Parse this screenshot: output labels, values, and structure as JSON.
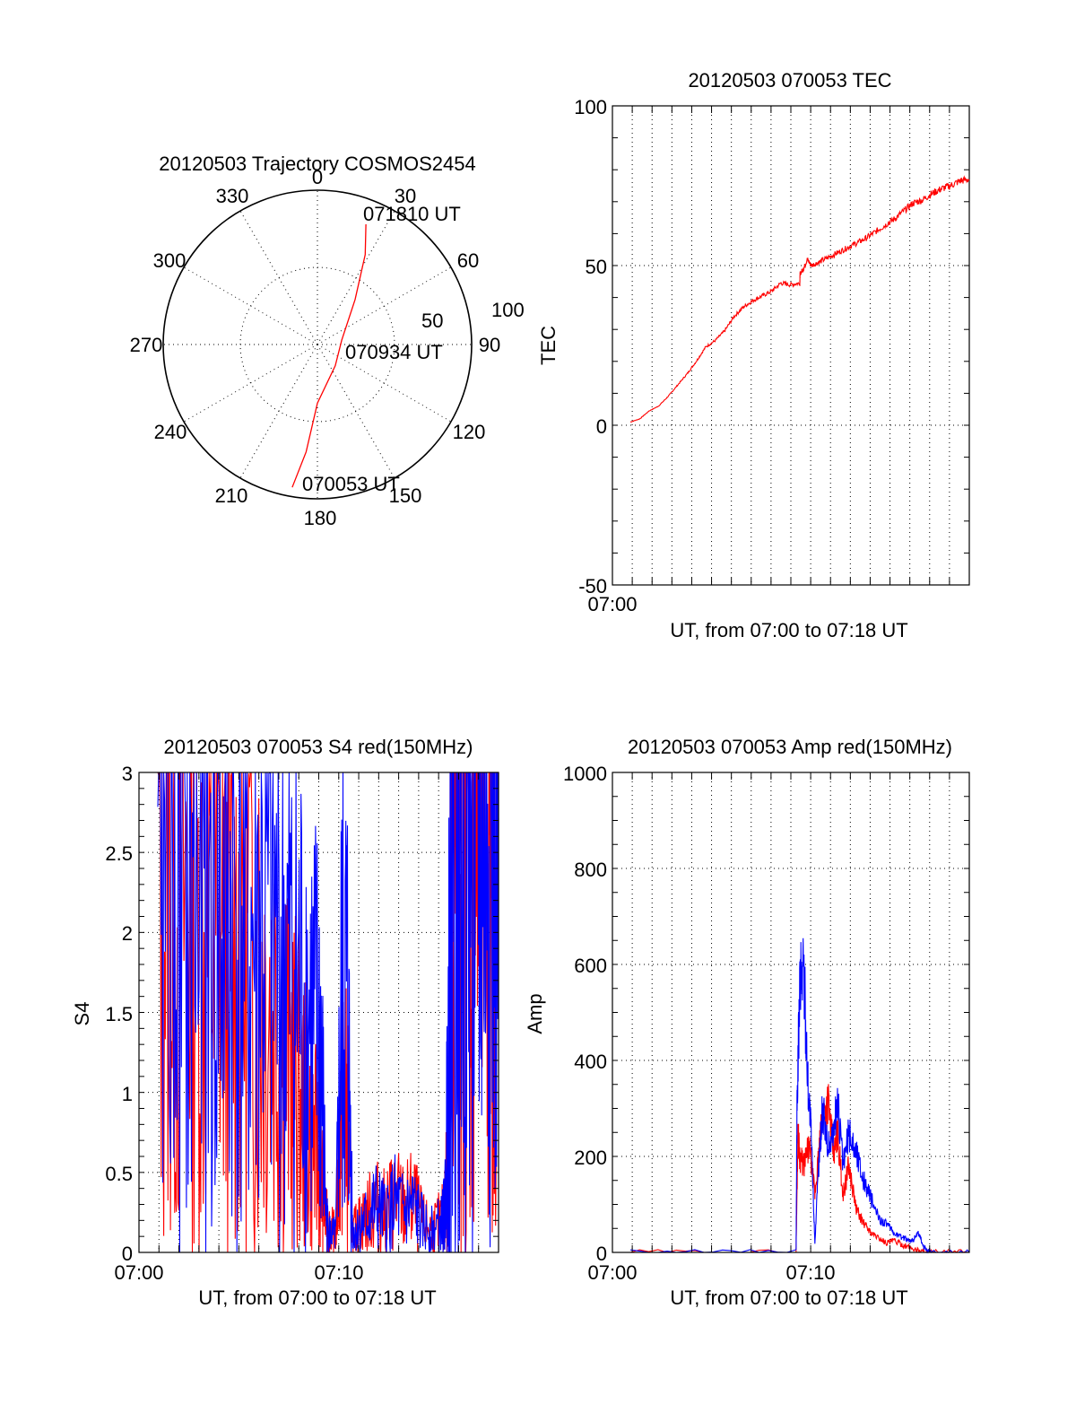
{
  "chart_data": [
    {
      "type": "polar",
      "title": "20120503 Trajectory COSMOS2454",
      "angle_labels": [
        "0",
        "30",
        "60",
        "90",
        "120",
        "150",
        "180",
        "210",
        "240",
        "270",
        "300",
        "330"
      ],
      "radial_labels": [
        "50",
        "100"
      ],
      "grid": true,
      "series": [
        {
          "color": "#ff0000",
          "points": [
            {
              "azimuth": 190,
              "elevation_offset": 94
            },
            {
              "azimuth": 186,
              "elevation_offset": 70
            },
            {
              "azimuth": 180,
              "elevation_offset": 38
            },
            {
              "azimuth": 140,
              "elevation_offset": 18
            },
            {
              "azimuth": 80,
              "elevation_offset": 16
            },
            {
              "azimuth": 40,
              "elevation_offset": 38
            },
            {
              "azimuth": 28,
              "elevation_offset": 66
            },
            {
              "azimuth": 22,
              "elevation_offset": 84
            }
          ]
        }
      ],
      "annotations": [
        "071810 UT",
        "070934 UT",
        "070053 UT"
      ]
    },
    {
      "type": "line",
      "title": "20120503 070053 TEC",
      "xlabel": "UT, from 07:00 to 07:18 UT",
      "ylabel": "TEC",
      "xlim": [
        0,
        18
      ],
      "ylim": [
        -50,
        100
      ],
      "yticks": [
        "100",
        "50",
        "0",
        "-50"
      ],
      "xticks": [
        "07:00"
      ],
      "grid": true,
      "series": [
        {
          "color": "#ff0000",
          "x": [
            0.0,
            0.5,
            1.0,
            1.5,
            2.0,
            2.5,
            3.0,
            3.5,
            4.0,
            4.5,
            5.0,
            5.5,
            6.0,
            6.5,
            7.0,
            7.5,
            8.0,
            8.5,
            9.0,
            9.01,
            9.2,
            9.4,
            9.6,
            10.0,
            10.5,
            11.0,
            11.5,
            12.0,
            12.5,
            13.0,
            13.5,
            14.0,
            14.5,
            15.0,
            15.5,
            16.0,
            16.5,
            17.0,
            17.5,
            18.0
          ],
          "y": [
            1.0,
            2.0,
            4.5,
            6.0,
            9.0,
            12.5,
            16.0,
            20.0,
            24.5,
            26.5,
            29.5,
            34.0,
            37.0,
            39.0,
            40.5,
            42.0,
            44.5,
            44.0,
            44.5,
            47.5,
            49.0,
            52.0,
            50.0,
            51.0,
            52.5,
            54.0,
            55.5,
            57.0,
            58.5,
            60.5,
            62.5,
            64.5,
            67.0,
            69.5,
            70.5,
            72.5,
            74.0,
            75.0,
            76.5,
            77.0
          ]
        }
      ]
    },
    {
      "type": "line",
      "title": "20120503 070053 S4 red(150MHz)",
      "xlabel": "UT, from 07:00 to 07:18 UT",
      "ylabel": "S4",
      "xlim": [
        0,
        18
      ],
      "ylim": [
        0,
        3
      ],
      "yticks": [
        "3",
        "2.5",
        "2",
        "1.5",
        "1",
        "0.5",
        "0"
      ],
      "xticks": [
        "07:00",
        "07:10"
      ],
      "grid": true,
      "series": [
        {
          "color": "#ff0000",
          "x": [
            0.0,
            0.8,
            1.6,
            2.4,
            3.2,
            4.0,
            4.8,
            5.6,
            6.4,
            7.0,
            7.6,
            8.2,
            8.6,
            8.9,
            9.1,
            9.4,
            9.7,
            10.0,
            10.3,
            10.6,
            11.0,
            11.5,
            12.0,
            12.5,
            13.0,
            13.5,
            14.0,
            14.5,
            15.0,
            15.2,
            15.4,
            15.6,
            16.0,
            16.4,
            16.8,
            17.2,
            17.6,
            18.0
          ],
          "y": [
            2.6,
            2.0,
            2.3,
            1.9,
            2.1,
            1.8,
            2.0,
            1.7,
            1.5,
            1.2,
            0.9,
            0.7,
            0.5,
            0.2,
            0.15,
            0.12,
            1.0,
            0.8,
            0.12,
            0.18,
            0.22,
            0.3,
            0.25,
            0.35,
            0.28,
            0.32,
            0.18,
            0.15,
            0.2,
            0.3,
            1.5,
            2.8,
            2.9,
            2.7,
            2.8,
            2.9,
            2.6,
            2.8
          ]
        },
        {
          "color": "#0000ff",
          "x": [
            0.0,
            0.8,
            1.6,
            2.4,
            3.2,
            4.0,
            4.8,
            5.6,
            6.4,
            7.0,
            7.6,
            8.2,
            8.6,
            8.9,
            9.1,
            9.4,
            9.7,
            10.0,
            10.3,
            10.6,
            11.0,
            11.5,
            12.0,
            12.5,
            13.0,
            13.5,
            14.0,
            14.5,
            15.0,
            15.2,
            15.4,
            15.6,
            16.0,
            16.4,
            16.8,
            17.2,
            17.6,
            18.0
          ],
          "y": [
            2.2,
            2.5,
            2.1,
            2.3,
            2.0,
            2.2,
            1.9,
            2.1,
            1.9,
            1.7,
            1.6,
            1.4,
            1.3,
            0.2,
            0.12,
            0.1,
            1.5,
            1.6,
            0.12,
            0.15,
            0.2,
            0.28,
            0.22,
            0.3,
            0.25,
            0.28,
            0.17,
            0.14,
            0.18,
            0.3,
            1.8,
            2.9,
            2.8,
            2.9,
            2.7,
            2.8,
            2.9,
            2.7
          ]
        }
      ]
    },
    {
      "type": "line",
      "title": "20120503 070053 Amp red(150MHz)",
      "xlabel": "UT, from 07:00 to 07:18 UT",
      "ylabel": "Amp",
      "xlim": [
        0,
        18
      ],
      "ylim": [
        0,
        1000
      ],
      "yticks": [
        "1000",
        "800",
        "600",
        "400",
        "200",
        "0"
      ],
      "xticks": [
        "07:00",
        "07:10"
      ],
      "grid": true,
      "series": [
        {
          "color": "#ff0000",
          "x": [
            0.0,
            8.8,
            8.9,
            9.0,
            9.2,
            9.5,
            9.8,
            10.0,
            10.2,
            10.5,
            10.8,
            11.0,
            11.3,
            11.6,
            12.0,
            12.4,
            12.8,
            13.2,
            13.6,
            14.0,
            14.5,
            15.0,
            15.5,
            16.0,
            18.0
          ],
          "y": [
            0,
            0,
            250,
            200,
            180,
            220,
            120,
            200,
            280,
            320,
            200,
            250,
            120,
            180,
            90,
            60,
            40,
            30,
            20,
            25,
            15,
            8,
            2,
            0,
            0
          ]
        },
        {
          "color": "#0000ff",
          "x": [
            0.0,
            8.8,
            8.85,
            9.0,
            9.2,
            9.4,
            9.6,
            9.8,
            10.0,
            10.2,
            10.5,
            10.8,
            11.0,
            11.3,
            11.6,
            12.0,
            12.4,
            12.8,
            13.2,
            13.6,
            14.0,
            14.5,
            15.0,
            15.3,
            15.6,
            16.0,
            18.0
          ],
          "y": [
            0,
            0,
            300,
            560,
            600,
            380,
            250,
            20,
            180,
            300,
            220,
            250,
            320,
            180,
            250,
            210,
            150,
            110,
            70,
            60,
            40,
            30,
            25,
            40,
            10,
            0,
            0
          ]
        }
      ]
    }
  ]
}
